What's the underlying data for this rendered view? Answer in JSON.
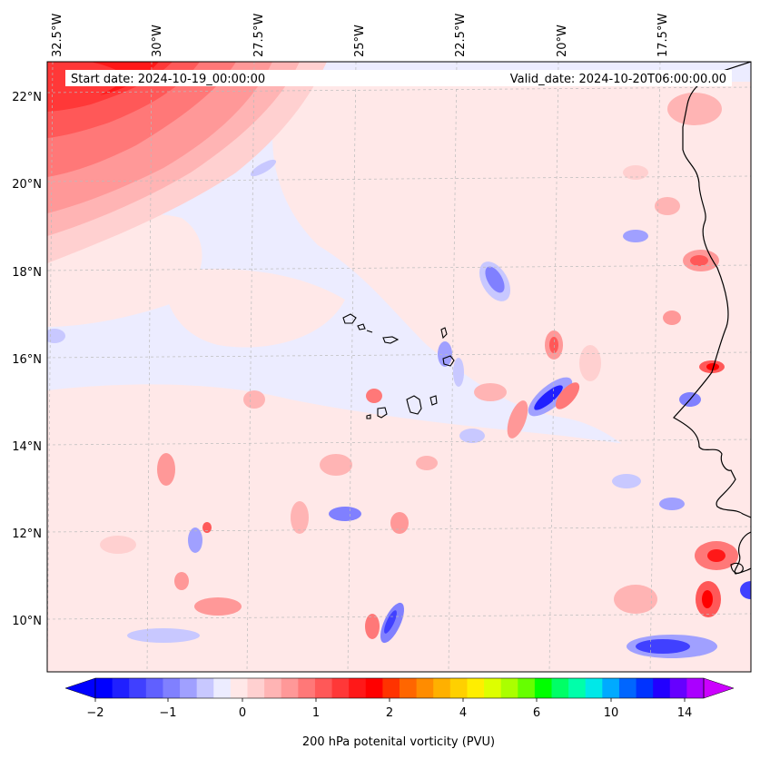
{
  "map": {
    "start_label": "Start date: 2024-10-19_00:00:00",
    "valid_label": "Valid_date: 2024-10-20T06:00:00.00",
    "lon_labels": [
      "32.5°W",
      "30°W",
      "27.5°W",
      "25°W",
      "22.5°W",
      "20°W",
      "17.5°W"
    ],
    "lat_labels": [
      "22°N",
      "20°N",
      "18°N",
      "16°N",
      "14°N",
      "12°N",
      "10°N"
    ],
    "lon_range_deg": [
      -32.5,
      -15.3
    ],
    "lat_range_deg": [
      8.9,
      22.7
    ]
  },
  "colorbar": {
    "label": "200 hPa potenital vorticity (PVU)",
    "ticks": [
      "−2",
      "−1",
      "0",
      "1",
      "2",
      "4",
      "6",
      "10",
      "14"
    ],
    "colors": [
      "#0000ff",
      "#2020ff",
      "#4040ff",
      "#6060ff",
      "#8080ff",
      "#a0a0ff",
      "#c8c8ff",
      "#ececff",
      "#ffe8e8",
      "#ffd0d0",
      "#ffb4b4",
      "#ff9898",
      "#ff7878",
      "#ff5858",
      "#ff3838",
      "#ff1818",
      "#ff0000",
      "#ff3300",
      "#ff6600",
      "#ff8c00",
      "#ffb000",
      "#ffd000",
      "#ffee00",
      "#ddff00",
      "#aaff00",
      "#66ff00",
      "#00ff00",
      "#00ff66",
      "#00ffaa",
      "#00e8e8",
      "#00aaff",
      "#0066ff",
      "#0033ff",
      "#2200ff",
      "#6600ff",
      "#aa00ff"
    ],
    "under_color": "#0000ff",
    "over_color": "#cc00ff"
  }
}
